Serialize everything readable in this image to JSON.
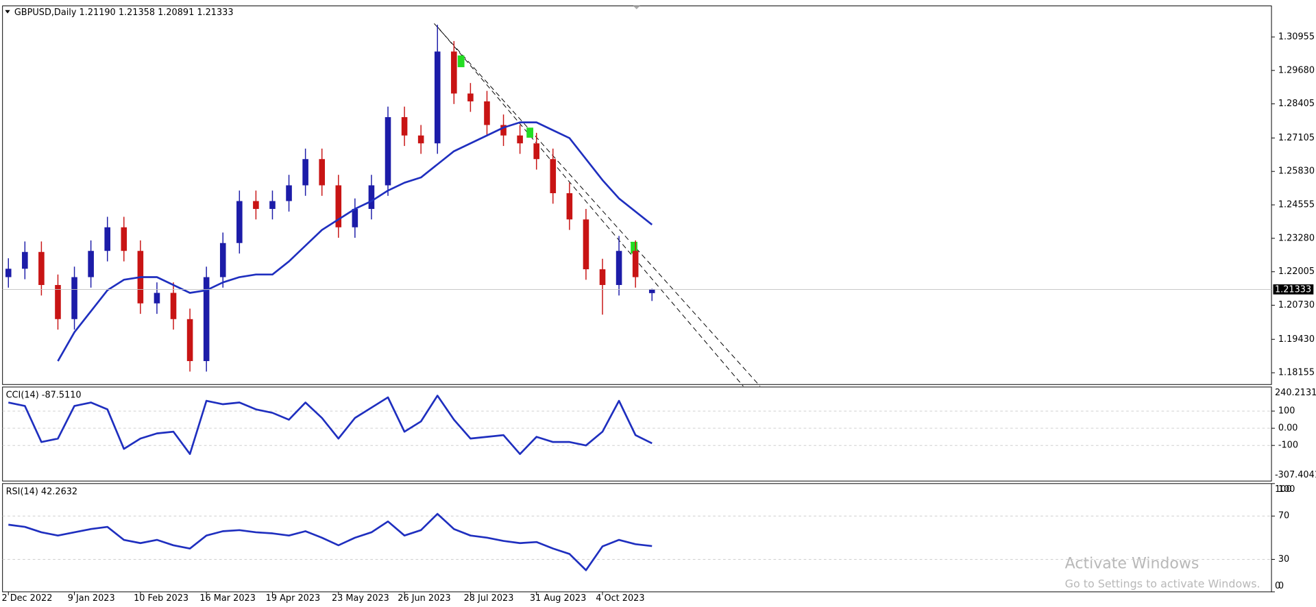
{
  "chart_data": [
    {
      "type": "candlestick",
      "title": "GBPUSD,Daily  1.21190 1.21358 1.20891 1.21333",
      "categories": [
        "2 Dec 2022",
        null,
        null,
        null,
        "9 Jan 2023",
        null,
        null,
        null,
        "10 Feb 2023",
        null,
        null,
        null,
        "16 Mar 2023",
        null,
        null,
        null,
        "19 Apr 2023",
        null,
        null,
        null,
        "23 May 2023",
        null,
        null,
        null,
        "26 Jun 2023",
        null,
        null,
        null,
        "28 Jul 2023",
        null,
        null,
        null,
        "31 Aug 2023",
        null,
        null,
        null,
        "4 Oct 2023",
        null,
        null,
        null
      ],
      "open": [
        1.218,
        1.2212,
        1.2276,
        1.215,
        1.202,
        1.218,
        1.228,
        1.237,
        1.228,
        1.208,
        1.212,
        1.202,
        1.186,
        1.218,
        1.231,
        1.247,
        1.244,
        1.247,
        1.253,
        1.263,
        1.253,
        1.237,
        1.244,
        1.253,
        1.279,
        1.272,
        1.269,
        1.304,
        1.288,
        1.285,
        1.276,
        1.272,
        1.269,
        1.263,
        1.25,
        1.24,
        1.221,
        1.215,
        1.228,
        1.2119
      ],
      "high": [
        1.2252,
        1.2316,
        1.2316,
        1.219,
        1.222,
        1.232,
        1.241,
        1.241,
        1.232,
        1.216,
        1.216,
        1.206,
        1.222,
        1.235,
        1.251,
        1.251,
        1.251,
        1.257,
        1.267,
        1.267,
        1.257,
        1.248,
        1.257,
        1.283,
        1.283,
        1.276,
        1.3142,
        1.308,
        1.292,
        1.289,
        1.28,
        1.276,
        1.273,
        1.267,
        1.254,
        1.244,
        1.225,
        1.2337,
        1.232,
        1.21358
      ],
      "low": [
        1.214,
        1.2172,
        1.211,
        1.198,
        1.198,
        1.214,
        1.224,
        1.224,
        1.204,
        1.204,
        1.198,
        1.182,
        1.182,
        1.214,
        1.227,
        1.24,
        1.24,
        1.243,
        1.249,
        1.249,
        1.233,
        1.233,
        1.24,
        1.249,
        1.268,
        1.265,
        1.265,
        1.284,
        1.281,
        1.272,
        1.268,
        1.265,
        1.259,
        1.246,
        1.236,
        1.217,
        1.2037,
        1.211,
        1.214,
        1.20891
      ],
      "close": [
        1.2212,
        1.2276,
        1.215,
        1.202,
        1.218,
        1.228,
        1.237,
        1.228,
        1.208,
        1.212,
        1.202,
        1.186,
        1.218,
        1.231,
        1.247,
        1.244,
        1.247,
        1.253,
        1.263,
        1.253,
        1.237,
        1.244,
        1.253,
        1.279,
        1.272,
        1.269,
        1.304,
        1.288,
        1.285,
        1.276,
        1.272,
        1.269,
        1.263,
        1.25,
        1.24,
        1.221,
        1.215,
        1.228,
        1.218,
        1.21333
      ],
      "up_color": "#1c1ca8",
      "down_color": "#c81414",
      "ma": {
        "color": "#1f2fbf",
        "values": [
          null,
          null,
          null,
          1.186,
          1.197,
          1.205,
          1.213,
          1.217,
          1.218,
          1.218,
          1.215,
          1.212,
          1.213,
          1.216,
          1.218,
          1.219,
          1.219,
          1.224,
          1.23,
          1.236,
          1.24,
          1.244,
          1.247,
          1.251,
          1.254,
          1.256,
          1.261,
          1.266,
          1.269,
          1.272,
          1.275,
          1.277,
          1.277,
          1.274,
          1.271,
          1.263,
          1.255,
          1.248,
          1.243,
          1.238
        ]
      },
      "last_price": 1.21333,
      "ylim": [
        1.17707,
        1.32139
      ],
      "yticks": [
        1.30955,
        {
          "value": 1.2968,
          "label": "1.29680"
        },
        {
          "value": 1.28405,
          "label": "1.28405"
        },
        1.27105,
        {
          "value": 1.2583,
          "label": "1.25830"
        },
        1.24555,
        {
          "value": 1.2328,
          "label": "1.23280"
        },
        1.22005,
        {
          "value": 1.2073,
          "label": "1.20730"
        },
        {
          "value": 1.1943,
          "label": "1.19430"
        },
        1.18155
      ],
      "grid": false
    },
    {
      "type": "line",
      "title": "CCI(14) -87.5110",
      "color": "#1f2fbf",
      "values": [
        150,
        130,
        -80,
        -60,
        130,
        150,
        110,
        -120,
        -60,
        -30,
        -20,
        -150,
        160,
        140,
        150,
        110,
        90,
        50,
        150,
        60,
        -60,
        60,
        120,
        180,
        -20,
        40,
        190,
        50,
        -60,
        -50,
        -40,
        -150,
        -50,
        -80,
        -80,
        -100,
        -20,
        160,
        -40,
        -87.511
      ],
      "ylim": [
        -307.4041,
        240.2131
      ],
      "yticks": [
        100,
        {
          "value": 0,
          "label": "0.00"
        },
        -100
      ],
      "grid": true
    },
    {
      "type": "line",
      "title": "RSI(14) 42.2632",
      "color": "#1f2fbf",
      "values": [
        62,
        60,
        55,
        52,
        55,
        58,
        60,
        48,
        45,
        48,
        43,
        40,
        52,
        56,
        57,
        55,
        54,
        52,
        56,
        50,
        43,
        50,
        55,
        65,
        52,
        57,
        72,
        58,
        52,
        50,
        47,
        45,
        46,
        40,
        35,
        20,
        42,
        48,
        44,
        42.2632
      ],
      "ylim": [
        0,
        100
      ],
      "yticks": [
        100,
        70,
        30,
        0
      ],
      "grid": true
    }
  ],
  "watermark": {
    "line1": "Activate Windows",
    "line2": "Go to Settings to activate Windows."
  }
}
